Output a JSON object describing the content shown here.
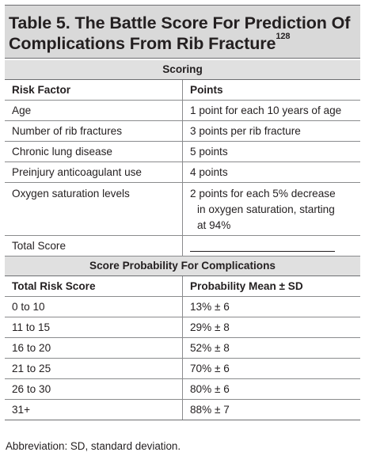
{
  "title": {
    "line1": "Table 5. The Battle Score For Prediction Of",
    "line2": "Complications From Rib Fracture",
    "ref": "128"
  },
  "scoring": {
    "section_label": "Scoring",
    "headers": [
      "Risk Factor",
      "Points"
    ],
    "rows": [
      {
        "factor": "Age",
        "points": "1 point for each 10 years of age"
      },
      {
        "factor": "Number of rib fractures",
        "points": "3 points per rib fracture"
      },
      {
        "factor": "Chronic lung disease",
        "points": "5 points"
      },
      {
        "factor": "Preinjury anticoagulant use",
        "points": "4 points"
      },
      {
        "factor": "Oxygen saturation levels",
        "points_lines": [
          "2 points for each 5% decrease",
          "in oxygen saturation, starting",
          "at 94%"
        ]
      },
      {
        "factor": "Total Score",
        "points": ""
      }
    ]
  },
  "probability": {
    "section_label": "Score Probability For Complications",
    "headers": [
      "Total Risk Score",
      "Probability Mean ± SD"
    ],
    "rows": [
      {
        "score": "0 to 10",
        "prob": "13% ± 6"
      },
      {
        "score": "11 to 15",
        "prob": "29% ± 8"
      },
      {
        "score": "16 to 20",
        "prob": "52% ± 8"
      },
      {
        "score": "21 to 25",
        "prob": "70% ± 6"
      },
      {
        "score": "26 to 30",
        "prob": "80% ± 6"
      },
      {
        "score": "31+",
        "prob": "88% ± 7"
      }
    ]
  },
  "footnote": "Abbreviation: SD, standard deviation."
}
